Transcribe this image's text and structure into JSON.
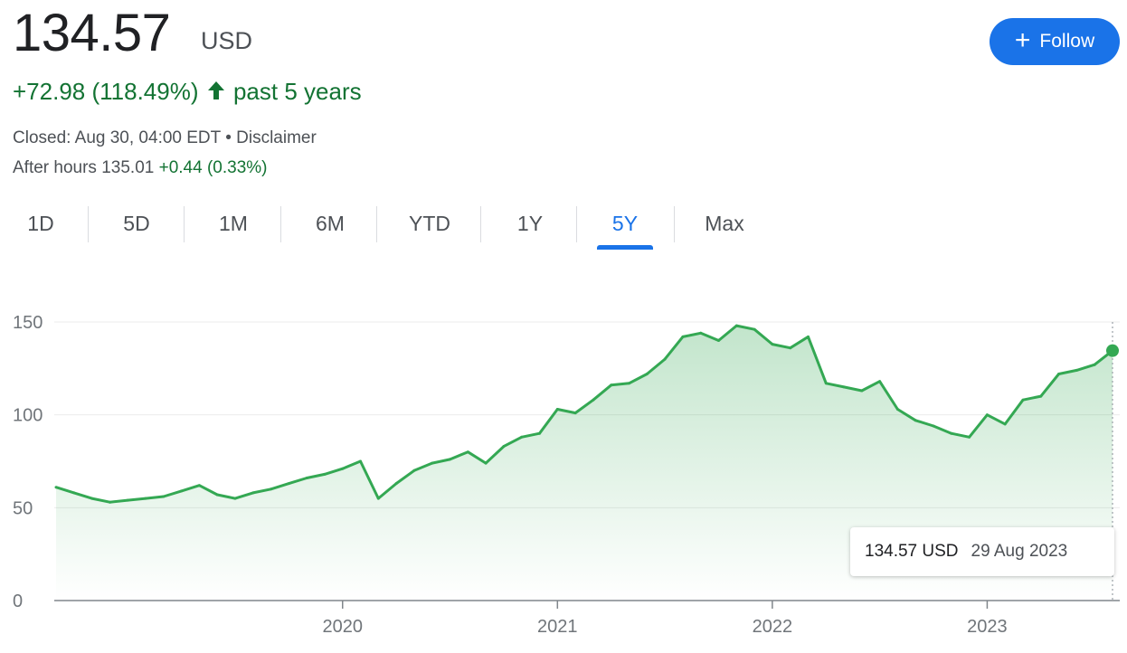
{
  "header": {
    "price": "134.57",
    "currency": "USD",
    "change": "+72.98 (118.49%)",
    "period": "past 5 years",
    "closed_text": "Closed: Aug 30, 04:00 EDT • Disclaimer",
    "after_hours_label": "After hours 135.01",
    "after_hours_change": "+0.44 (0.33%)",
    "follow_label": "Follow",
    "accent_color": "#1a73e8",
    "positive_color": "#137333"
  },
  "tabs": [
    {
      "label": "1D",
      "active": false
    },
    {
      "label": "5D",
      "active": false
    },
    {
      "label": "1M",
      "active": false
    },
    {
      "label": "6M",
      "active": false
    },
    {
      "label": "YTD",
      "active": false
    },
    {
      "label": "1Y",
      "active": false
    },
    {
      "label": "5Y",
      "active": true
    },
    {
      "label": "Max",
      "active": false
    }
  ],
  "tooltip": {
    "price": "134.57 USD",
    "date": "29 Aug 2023"
  },
  "chart_data": {
    "type": "area",
    "title": "",
    "xlabel": "",
    "ylabel": "",
    "ylim": [
      0,
      150
    ],
    "yticks": [
      0,
      50,
      100,
      150
    ],
    "xticks": [
      "2020",
      "2021",
      "2022",
      "2023"
    ],
    "grid": true,
    "line_color": "#34a853",
    "series": [
      {
        "x": [
          "2018-09",
          "2018-10",
          "2018-11",
          "2018-12",
          "2019-01",
          "2019-02",
          "2019-03",
          "2019-04",
          "2019-05",
          "2019-06",
          "2019-07",
          "2019-08",
          "2019-09",
          "2019-10",
          "2019-11",
          "2019-12",
          "2020-01",
          "2020-02",
          "2020-03",
          "2020-04",
          "2020-05",
          "2020-06",
          "2020-07",
          "2020-08",
          "2020-09",
          "2020-10",
          "2020-11",
          "2020-12",
          "2021-01",
          "2021-02",
          "2021-03",
          "2021-04",
          "2021-05",
          "2021-06",
          "2021-07",
          "2021-08",
          "2021-09",
          "2021-10",
          "2021-11",
          "2021-12",
          "2022-01",
          "2022-02",
          "2022-03",
          "2022-04",
          "2022-05",
          "2022-06",
          "2022-07",
          "2022-08",
          "2022-09",
          "2022-10",
          "2022-11",
          "2022-12",
          "2023-01",
          "2023-02",
          "2023-03",
          "2023-04",
          "2023-05",
          "2023-06",
          "2023-07",
          "2023-08"
        ],
        "y": [
          61,
          58,
          55,
          53,
          54,
          55,
          56,
          59,
          62,
          57,
          55,
          58,
          60,
          63,
          66,
          68,
          71,
          75,
          55,
          63,
          70,
          74,
          76,
          80,
          74,
          83,
          88,
          90,
          103,
          101,
          108,
          116,
          117,
          122,
          130,
          142,
          144,
          140,
          148,
          146,
          138,
          136,
          142,
          117,
          115,
          113,
          118,
          103,
          97,
          94,
          90,
          88,
          100,
          95,
          108,
          110,
          122,
          124,
          127,
          134.57
        ]
      }
    ]
  }
}
